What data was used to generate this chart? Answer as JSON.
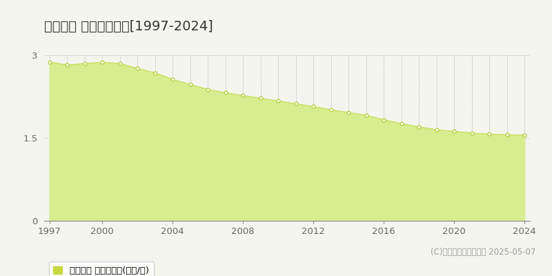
{
  "title": "日之影町 基準地価推移[1997-2024]",
  "years": [
    1997,
    1998,
    1999,
    2000,
    2001,
    2002,
    2003,
    2004,
    2005,
    2006,
    2007,
    2008,
    2009,
    2010,
    2011,
    2012,
    2013,
    2014,
    2015,
    2016,
    2017,
    2018,
    2019,
    2020,
    2021,
    2022,
    2023,
    2024
  ],
  "values": [
    2.88,
    2.82,
    2.85,
    2.87,
    2.85,
    2.76,
    2.68,
    2.56,
    2.47,
    2.38,
    2.32,
    2.27,
    2.22,
    2.17,
    2.12,
    2.07,
    2.01,
    1.96,
    1.91,
    1.83,
    1.76,
    1.7,
    1.65,
    1.62,
    1.59,
    1.57,
    1.56,
    1.55
  ],
  "ylim": [
    0,
    3.0
  ],
  "yticks": [
    0,
    1.5,
    3
  ],
  "xticks": [
    1997,
    2000,
    2004,
    2008,
    2012,
    2016,
    2020,
    2024
  ],
  "line_color": "#c8e060",
  "fill_color": "#d8ed90",
  "marker_face_color": "#ffffff",
  "marker_edge_color": "#b8d040",
  "grid_color": "#bbbbbb",
  "bg_color": "#f5f5f0",
  "plot_bg_color": "#f5f5f0",
  "legend_label": "基準地価 平均坪単価(万円/坪)",
  "legend_color": "#c8d840",
  "copyright_text": "(C)土地価格ドットコム 2025-05-07",
  "title_fontsize": 14,
  "tick_fontsize": 9.5,
  "legend_fontsize": 9.5,
  "copyright_fontsize": 8.5
}
